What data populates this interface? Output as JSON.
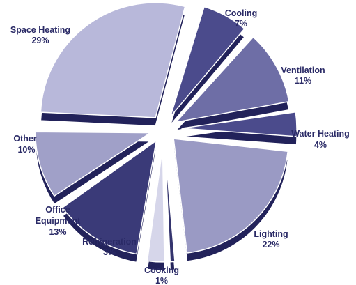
{
  "chart_data": {
    "type": "pie",
    "style": "exploded-3d",
    "title": "",
    "slices": [
      {
        "label": "Cooling",
        "value": 7,
        "value_label": "7%",
        "color": "#4b4b8c"
      },
      {
        "label": "Ventilation",
        "value": 11,
        "value_label": "11%",
        "color": "#6e6ea6"
      },
      {
        "label": "Water Heating",
        "value": 4,
        "value_label": "4%",
        "color": "#4b4b8c"
      },
      {
        "label": "Lighting",
        "value": 22,
        "value_label": "22%",
        "color": "#9a9ac4"
      },
      {
        "label": "Cooking",
        "value": 1,
        "value_label": "1%",
        "color": "#34346e"
      },
      {
        "label": "Refrigeration",
        "value": 3,
        "value_label": "3%",
        "color": "#d6d6ea"
      },
      {
        "label": "Office Equipment",
        "value": 13,
        "value_label": "13%",
        "color": "#3a3a78"
      },
      {
        "label": "Other",
        "value": 10,
        "value_label": "10%",
        "color": "#a0a0c8"
      },
      {
        "label": "Space Heating",
        "value": 29,
        "value_label": "29%",
        "color": "#b8b8da"
      }
    ],
    "side_color": "#22225a",
    "label_color": "#2a2a66"
  }
}
